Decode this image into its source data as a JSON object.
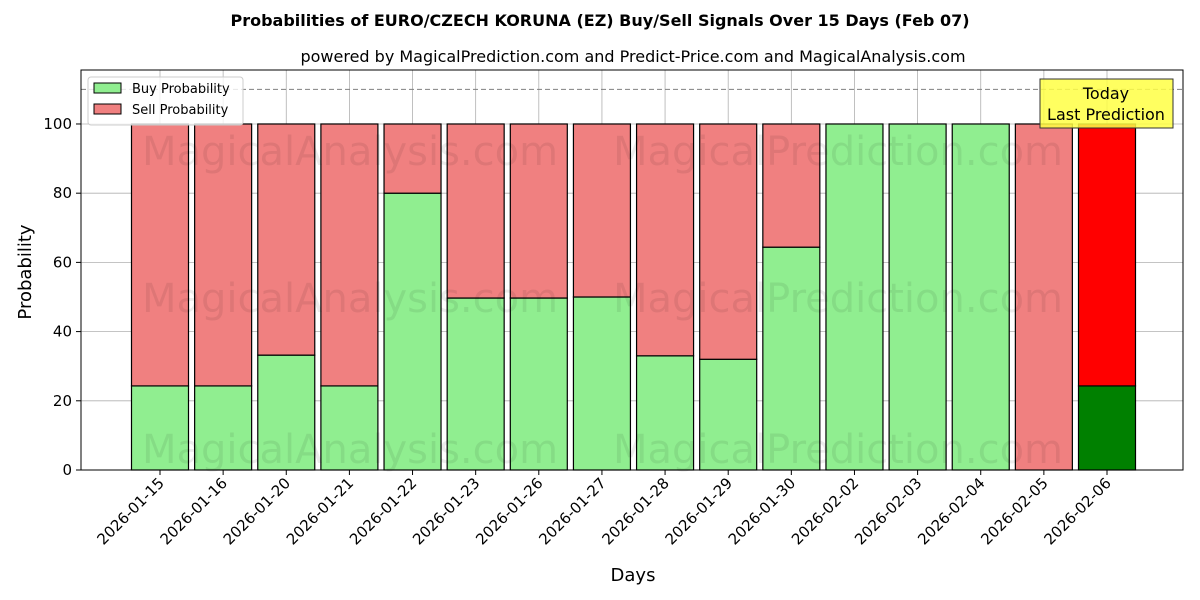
{
  "chart_data": {
    "type": "bar",
    "stacked": true,
    "title": "Probabilities of EURO/CZECH KORUNA (EZ) Buy/Sell Signals Over 15 Days (Feb 07)",
    "subtitle": "powered by MagicalPrediction.com and Predict-Price.com and MagicalAnalysis.com",
    "xlabel": "Days",
    "ylabel": "Probability",
    "ylim": [
      0,
      115.6
    ],
    "yticks": [
      0,
      20,
      40,
      60,
      80,
      100
    ],
    "grid": true,
    "legend_position": "upper left",
    "categories": [
      "2026-01-15",
      "2026-01-16",
      "2026-01-20",
      "2026-01-21",
      "2026-01-22",
      "2026-01-23",
      "2026-01-26",
      "2026-01-27",
      "2026-01-28",
      "2026-01-29",
      "2026-01-30",
      "2026-02-02",
      "2026-02-03",
      "2026-02-04",
      "2026-02-05",
      "2026-02-06"
    ],
    "series": [
      {
        "name": "Buy Probability",
        "color": "#90ee90",
        "values": [
          24.3,
          24.3,
          33.2,
          24.3,
          80.0,
          49.7,
          49.7,
          50.0,
          33.0,
          32.0,
          64.4,
          100,
          100,
          100,
          0,
          24.3
        ]
      },
      {
        "name": "Sell Probability",
        "color": "#f08080",
        "values": [
          75.7,
          75.7,
          66.8,
          75.7,
          20.0,
          50.3,
          50.3,
          50.0,
          67.0,
          68.0,
          35.6,
          0,
          0,
          0,
          100,
          75.7
        ]
      }
    ],
    "highlight": {
      "index": 15,
      "buy_color": "#008000",
      "sell_color": "#ff0000"
    },
    "reference_line": {
      "y": 110,
      "style": "dashed",
      "color": "#808080"
    },
    "annotation": {
      "lines": [
        "Today",
        "Last Prediction"
      ],
      "background": "#ffff44"
    },
    "watermarks": [
      "MagicalAnalysis.com",
      "MagicalPrediction.com"
    ]
  }
}
